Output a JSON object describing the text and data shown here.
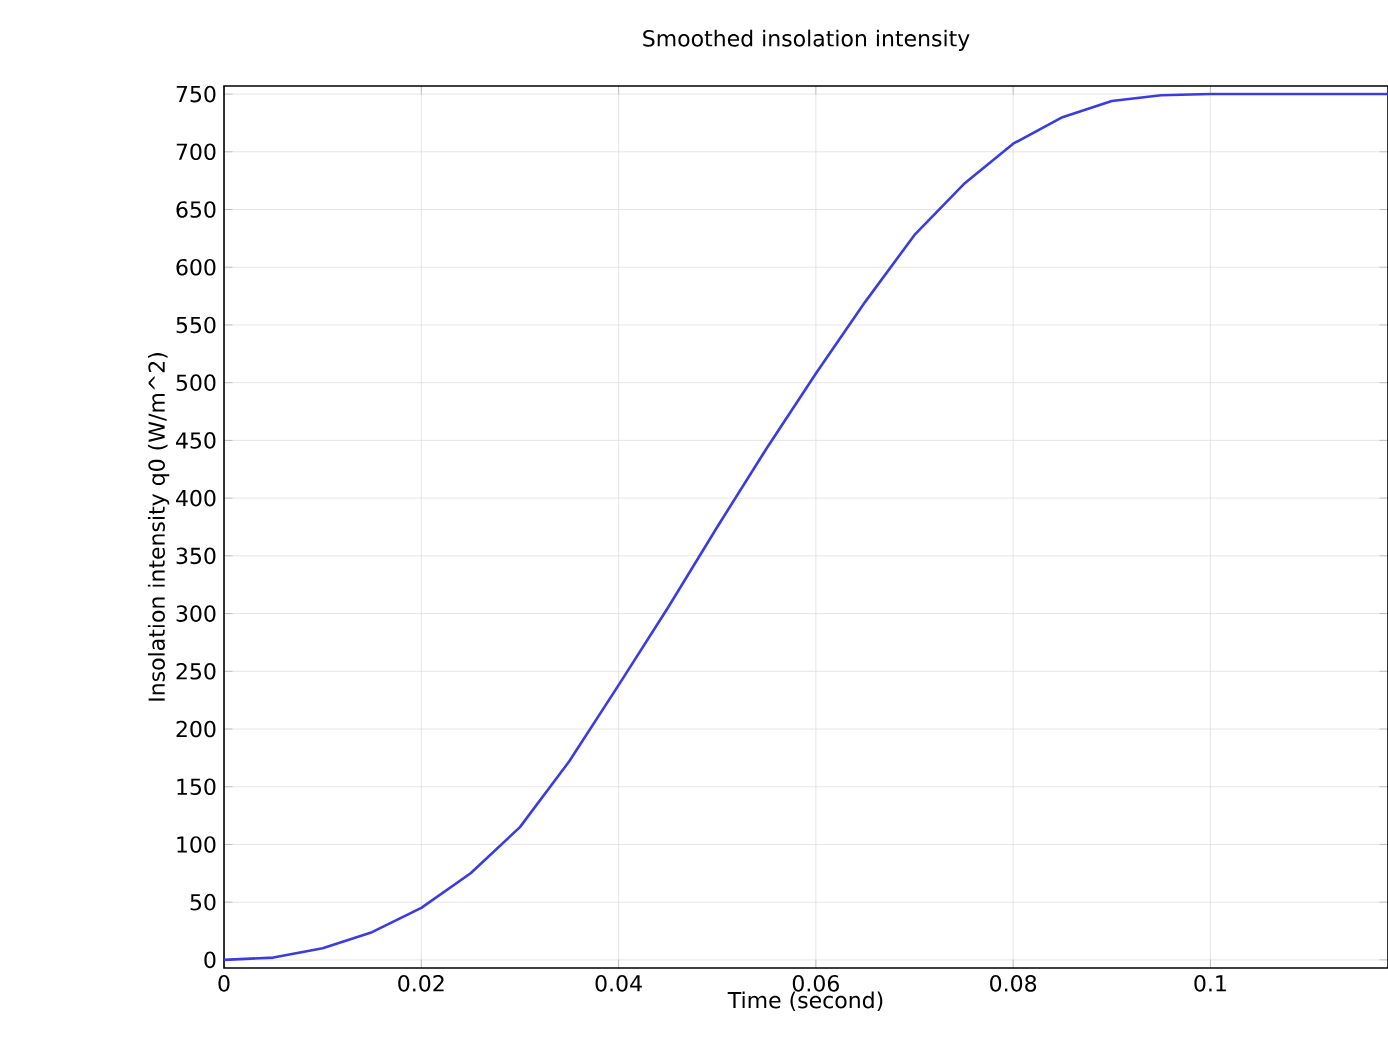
{
  "chart_data": {
    "type": "line",
    "title": "Smoothed insolation intensity",
    "xlabel": "Time (second)",
    "ylabel": "Insolation intensity q0 (W/m^2)",
    "x": [
      0,
      0.005,
      0.01,
      0.015,
      0.02,
      0.025,
      0.03,
      0.035,
      0.04,
      0.045,
      0.05,
      0.055,
      0.06,
      0.065,
      0.07,
      0.075,
      0.08,
      0.085,
      0.09,
      0.095,
      0.1,
      0.118
    ],
    "series": [
      {
        "color": "#3b3be0",
        "values": [
          0,
          2,
          10,
          24,
          45,
          75,
          115,
          172,
          238,
          305,
          375,
          443,
          508,
          570,
          628,
          672,
          707,
          730,
          744,
          749,
          750,
          750
        ]
      }
    ],
    "xlim": [
      0,
      0.118
    ],
    "ylim": [
      -7,
      757
    ],
    "xticks": [
      0,
      0.02,
      0.04,
      0.06,
      0.08,
      0.1
    ],
    "yticks": [
      0,
      50,
      100,
      150,
      200,
      250,
      300,
      350,
      400,
      450,
      500,
      550,
      600,
      650,
      700,
      750
    ],
    "grid": true,
    "marker": "none",
    "line_style": "solid"
  }
}
